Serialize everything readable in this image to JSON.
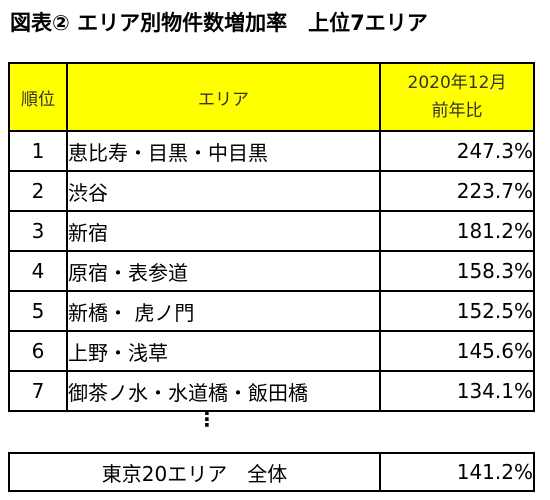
{
  "title": "図表② エリア別物件数増加率　上位7エリア",
  "header": {
    "rank": "順位",
    "area": "エリア",
    "rate_line1": "2020年12月",
    "rate_line2": "前年比"
  },
  "rows": [
    {
      "rank": "1",
      "area": "恵比寿・目黒・中目黒",
      "rate": "247.3%"
    },
    {
      "rank": "2",
      "area": "渋谷",
      "rate": "223.7%"
    },
    {
      "rank": "3",
      "area": "新宿",
      "rate": "181.2%"
    },
    {
      "rank": "4",
      "area": "原宿・表参道",
      "rate": "158.3%"
    },
    {
      "rank": "5",
      "area": "新橋・ 虎ノ門",
      "rate": "152.5%"
    },
    {
      "rank": "6",
      "area": "上野・浅草",
      "rate": "145.6%"
    },
    {
      "rank": "7",
      "area": "御茶ノ水・水道橋・飯田橋",
      "rate": "134.1%"
    }
  ],
  "ellipsis": "⋮",
  "total": {
    "label": "東京20エリア　全体",
    "rate": "141.2%"
  },
  "colors": {
    "header_bg": "#ffff00",
    "border": "#000000"
  }
}
